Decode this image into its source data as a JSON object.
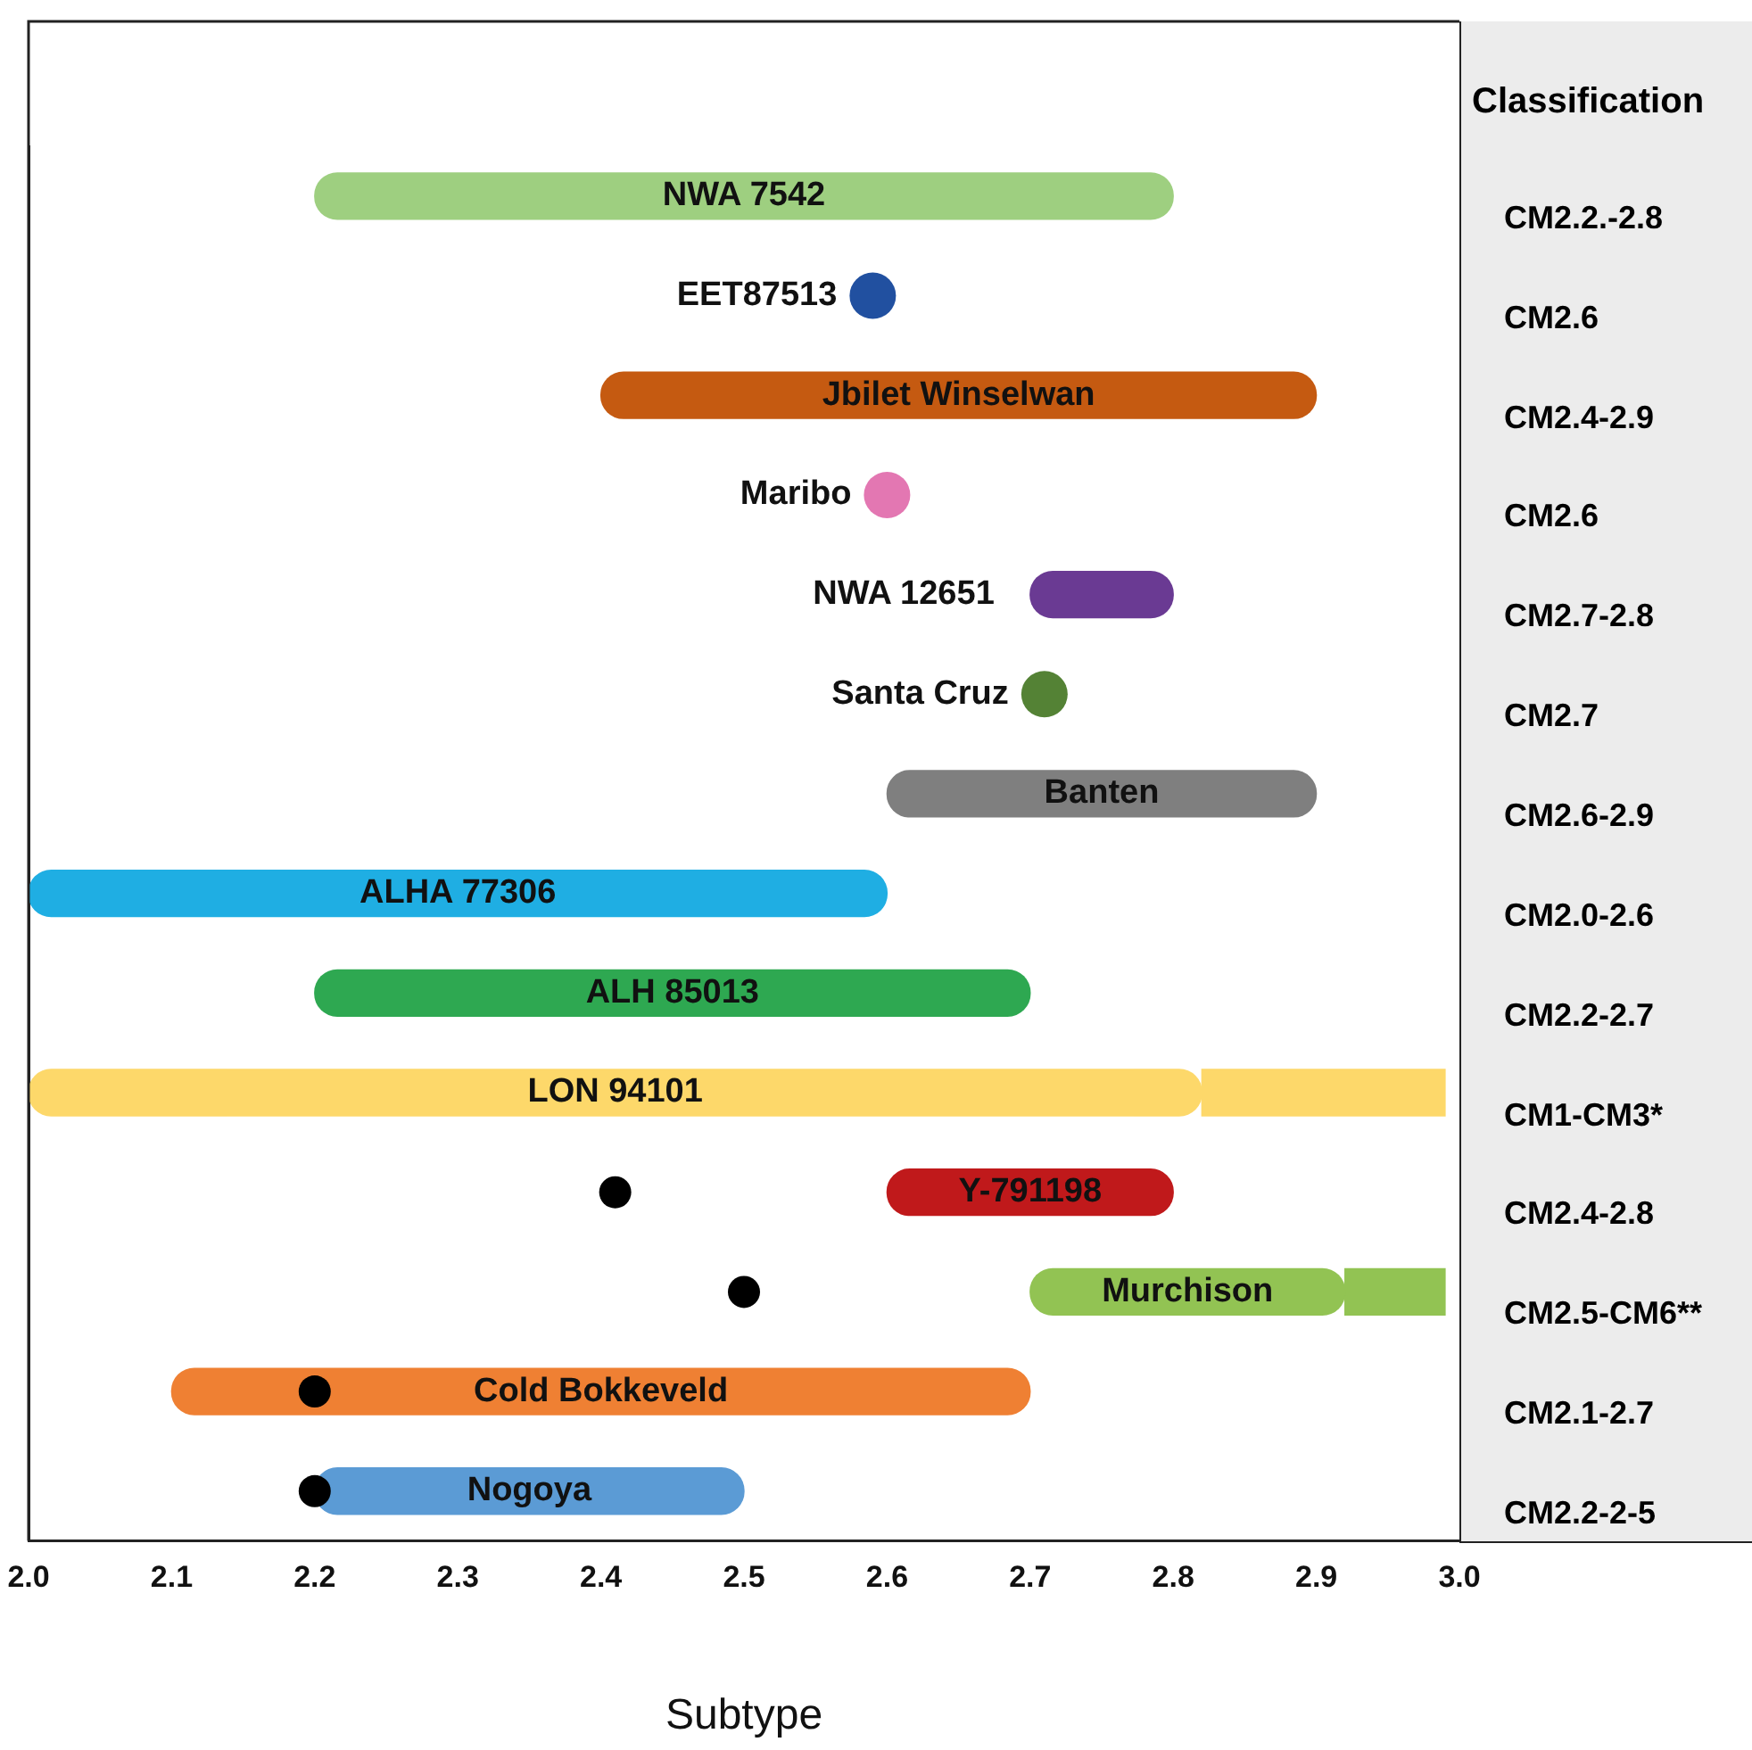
{
  "chart_data": {
    "type": "bar",
    "orientation": "horizontal",
    "categories": [
      "NWA 7542",
      "EET87513",
      "Jbilet Winselwan",
      "Maribo",
      "NWA 12651",
      "Santa Cruz",
      "Banten",
      "ALHA 77306",
      "ALH 85013",
      "LON 94101",
      "Y-791198",
      "Murchison",
      "Cold Bokkeveld",
      "Nogoya"
    ],
    "series": [
      {
        "type": "bar",
        "colors": [
          "#9ecf80",
          "#2150a0",
          "#c55a11",
          "#e377b2",
          "#6a3a93",
          "#548235",
          "#7f7f7f",
          "#1faee3",
          "#2ea851",
          "#fdd86a",
          "#c0191b",
          "#92c353",
          "#ef8033",
          "#5b9bd5"
        ],
        "base": [
          2.2,
          null,
          2.4,
          null,
          2.7,
          null,
          2.6,
          2.0,
          2.2,
          2.0,
          2.6,
          2.7,
          2.1,
          2.2
        ],
        "values": [
          0.6,
          null,
          0.5,
          null,
          0.1,
          null,
          0.3,
          0.6,
          0.5,
          0.82,
          0.2,
          0.22,
          0.6,
          0.3
        ]
      },
      {
        "type": "bar",
        "colors": [
          "#9ecf80",
          "#2150a0",
          "#c55a11",
          "#e377b2",
          "#6a3a93",
          "#548235",
          "#7f7f7f",
          "#1faee3",
          "#2ea851",
          "#fdd86a",
          "#c0191b",
          "#92c353",
          "#ef8033",
          "#5b9bd5"
        ],
        "base": [
          null,
          null,
          null,
          null,
          null,
          null,
          null,
          null,
          null,
          2.82,
          null,
          2.92,
          null,
          null
        ],
        "values": [
          null,
          null,
          null,
          null,
          null,
          null,
          null,
          null,
          null,
          0.17,
          null,
          0.07,
          null,
          null
        ]
      },
      {
        "type": "scatter",
        "colors": [
          "#9ecf80",
          "#2150a0",
          "#c55a11",
          "#e377b2",
          "#6a3a93",
          "#548235",
          "#7f7f7f",
          "#1faee3",
          "#2ea851",
          "#fdd86a",
          "#c0191b",
          "#92c353",
          "#ef8033",
          "#5b9bd5"
        ],
        "values": [
          null,
          2.59,
          null,
          2.6,
          null,
          2.71,
          null,
          null,
          null,
          null,
          null,
          null,
          null,
          null
        ]
      },
      {
        "type": "scatter",
        "color": "#000000",
        "marker": "circle",
        "values": [
          null,
          null,
          null,
          null,
          null,
          null,
          null,
          null,
          null,
          null,
          2.41,
          2.5,
          2.2,
          2.2
        ]
      }
    ],
    "xlim": [
      2.0,
      3.0
    ],
    "xticks": [
      {
        "value": 2.0,
        "label": "2.0"
      },
      {
        "value": 2.1,
        "label": "2.1"
      },
      {
        "value": 2.2,
        "label": "2.2"
      },
      {
        "value": 2.3,
        "label": "2.3"
      },
      {
        "value": 2.4,
        "label": "2.4"
      },
      {
        "value": 2.5,
        "label": "2.5"
      },
      {
        "value": 2.6,
        "label": "2.6"
      },
      {
        "value": 2.7,
        "label": "2.7"
      },
      {
        "value": 2.8,
        "label": "2.8"
      },
      {
        "value": 2.9,
        "label": "2.9"
      },
      {
        "value": 3.0,
        "label": "3.0"
      }
    ],
    "xlabel": "Subtype",
    "tick_labels": "x",
    "grid": false,
    "legend": false,
    "annotations": [
      "Classification",
      "CM2.2.-2.8",
      "CM2.6",
      "CM2.4-2.9",
      "CM2.6",
      "CM2.7-2.8",
      "CM2.7",
      "CM2.6-2.9",
      "CM2.0-2.6",
      "CM2.2-2.7",
      "CM1-CM3*",
      "CM2.4-2.8",
      "CM2.5-CM6**",
      "CM2.1-2.7",
      "CM2.2-2-5"
    ]
  }
}
